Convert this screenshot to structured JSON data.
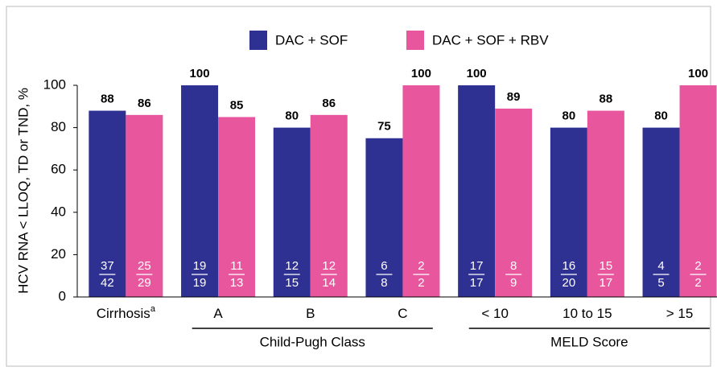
{
  "chart_data": {
    "type": "bar",
    "ylabel": "HCV RNA < LLOQ, TD or TND, %",
    "categories": [
      "Cirrhosis",
      "A",
      "B",
      "C",
      "< 10",
      "10 to 15",
      "> 15"
    ],
    "category_superscripts": [
      "a",
      null,
      null,
      null,
      null,
      null,
      null
    ],
    "groups": [
      {
        "label": "Child-Pugh Class",
        "from": 1,
        "to": 3
      },
      {
        "label": "MELD Score",
        "from": 4,
        "to": 6
      }
    ],
    "series": [
      {
        "name": "DAC + SOF",
        "color": "#2e3192",
        "values": [
          88,
          100,
          80,
          75,
          100,
          80,
          80
        ],
        "fractions": [
          [
            37,
            42
          ],
          [
            19,
            19
          ],
          [
            12,
            15
          ],
          [
            6,
            8
          ],
          [
            17,
            17
          ],
          [
            16,
            20
          ],
          [
            4,
            5
          ]
        ]
      },
      {
        "name": "DAC + SOF + RBV",
        "color": "#e8579e",
        "values": [
          86,
          85,
          86,
          100,
          89,
          88,
          100
        ],
        "fractions": [
          [
            25,
            29
          ],
          [
            11,
            13
          ],
          [
            12,
            14
          ],
          [
            2,
            2
          ],
          [
            8,
            9
          ],
          [
            15,
            17
          ],
          [
            2,
            2
          ]
        ]
      }
    ],
    "ylim": [
      0,
      100
    ],
    "yticks": [
      0,
      20,
      40,
      60,
      80,
      100
    ],
    "grid": false,
    "legend": "top"
  }
}
